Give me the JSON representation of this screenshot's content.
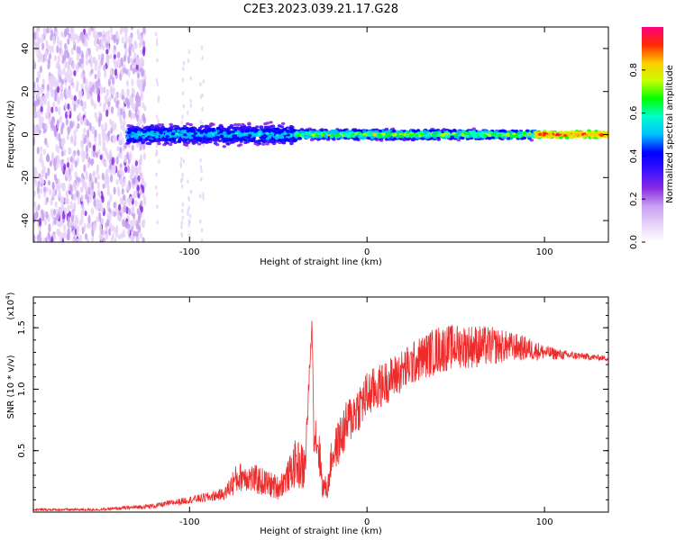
{
  "title": "C2E3.2023.039.21.17.G28",
  "colors": {
    "snr_line": "#ee2b2b",
    "axis": "#000000",
    "colormap": [
      "#ffffff",
      "#e6d2f8",
      "#c7a0f2",
      "#8a2be2",
      "#3a10ff",
      "#0000ff",
      "#00bfff",
      "#00ffcc",
      "#00ff00",
      "#c8ff00",
      "#ffcc00",
      "#ff2a00",
      "#ff0080"
    ]
  },
  "chart_data": [
    {
      "type": "heatmap",
      "xlabel": "Height of straight line (km)",
      "ylabel": "Frequency (Hz)",
      "xlim": [
        -188,
        136
      ],
      "ylim": [
        -50,
        50
      ],
      "x_ticks": [
        -100,
        0,
        100
      ],
      "y_ticks": [
        -40,
        -20,
        0,
        20,
        40
      ],
      "colorbar": {
        "label": "Normalized spectral amplitude",
        "range": [
          0,
          1
        ],
        "ticks": [
          "0.0",
          "0.2",
          "0.4",
          "0.6",
          "0.8"
        ]
      },
      "description_of_signal": [
        {
          "x_range": [
            -188,
            -125
          ],
          "freq_range": [
            -50,
            50
          ],
          "amplitude": [
            0.05,
            0.15
          ],
          "note": "broadband scatter"
        },
        {
          "x_range": [
            -135,
            -40
          ],
          "freq_center": 0,
          "freq_halfwidth": 6,
          "amplitude": [
            0.2,
            0.6
          ]
        },
        {
          "x_range": [
            -40,
            95
          ],
          "freq_center": 0,
          "freq_halfwidth": 3,
          "amplitude": [
            0.2,
            0.85
          ]
        },
        {
          "x_range": [
            95,
            136
          ],
          "freq_center": 0,
          "freq_halfwidth": 2,
          "amplitude": [
            0.6,
            1.0
          ]
        }
      ]
    },
    {
      "type": "line",
      "xlabel": "Height of straight line (km)",
      "ylabel": "SNR (10 * v/v)",
      "y_multiplier": "(x10",
      "y_multiplier_exp": "4",
      "y_multiplier_close": ")",
      "xlim": [
        -188,
        136
      ],
      "ylim": [
        0,
        1.75
      ],
      "x_ticks": [
        -100,
        0,
        100
      ],
      "y_ticks": [
        0.5,
        1.0,
        1.5
      ],
      "y_tick_labels": [
        "0.5",
        "1.0",
        "1.5"
      ],
      "series": [
        {
          "x": [
            -188,
            -150,
            -120,
            -100,
            -90,
            -80,
            -75,
            -70,
            -60,
            -50,
            -45,
            -40,
            -35,
            -31,
            -30,
            -27,
            -25,
            -22,
            -20,
            -15,
            -10,
            -5,
            0,
            10,
            20,
            30,
            40,
            50,
            60,
            70,
            80,
            90,
            100,
            110,
            120,
            136
          ],
          "y": [
            0.02,
            0.02,
            0.05,
            0.1,
            0.12,
            0.15,
            0.25,
            0.3,
            0.25,
            0.2,
            0.28,
            0.4,
            0.35,
            1.55,
            0.7,
            0.5,
            0.2,
            0.2,
            0.45,
            0.6,
            0.75,
            0.85,
            0.95,
            1.05,
            1.15,
            1.25,
            1.32,
            1.35,
            1.35,
            1.35,
            1.35,
            1.33,
            1.3,
            1.28,
            1.27,
            1.25
          ],
          "noise_amplitude": [
            0.01,
            0.01,
            0.02,
            0.03,
            0.04,
            0.05,
            0.12,
            0.12,
            0.12,
            0.1,
            0.12,
            0.2,
            0.2,
            0.02,
            0.2,
            0.2,
            0.1,
            0.1,
            0.15,
            0.2,
            0.2,
            0.2,
            0.2,
            0.18,
            0.18,
            0.18,
            0.2,
            0.18,
            0.18,
            0.16,
            0.12,
            0.1,
            0.06,
            0.04,
            0.03,
            0.02
          ]
        }
      ]
    }
  ]
}
